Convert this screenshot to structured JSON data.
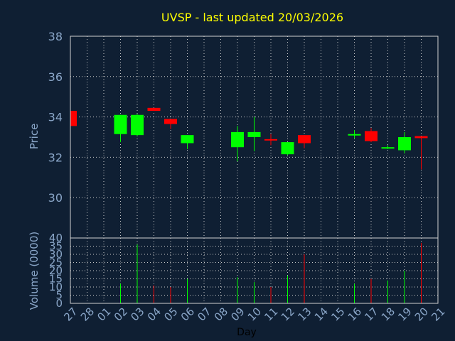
{
  "chart_data": [
    {
      "type": "candlestick",
      "title": "UVSP - last updated 20/03/2026",
      "ylabel": "Price",
      "ylim": [
        28,
        38
      ],
      "yticks": [
        30,
        32,
        34,
        36,
        38
      ],
      "x_tick_labels": [
        "27",
        "28",
        "01",
        "02",
        "03",
        "04",
        "05",
        "06",
        "07",
        "08",
        "09",
        "10",
        "11",
        "12",
        "13",
        "14",
        "15",
        "16",
        "17",
        "18",
        "19",
        "20",
        "21"
      ],
      "grid": true,
      "up_color": "#00ff00",
      "down_color": "#ff0000",
      "candles": [
        {
          "day": "27",
          "index": 0,
          "open": 34.3,
          "close": 33.55,
          "high": 34.3,
          "low": 33.55
        },
        {
          "day": "02",
          "index": 3,
          "open": 33.15,
          "close": 34.1,
          "high": 34.1,
          "low": 32.75
        },
        {
          "day": "03",
          "index": 4,
          "open": 33.1,
          "close": 34.1,
          "high": 34.15,
          "low": 33.05
        },
        {
          "day": "04",
          "index": 5,
          "open": 34.45,
          "close": 34.3,
          "high": 34.45,
          "low": 34.3
        },
        {
          "day": "05",
          "index": 6,
          "open": 33.9,
          "close": 33.65,
          "high": 33.9,
          "low": 33.4
        },
        {
          "day": "06",
          "index": 7,
          "open": 32.7,
          "close": 33.1,
          "high": 33.1,
          "low": 32.4
        },
        {
          "day": "09",
          "index": 10,
          "open": 32.5,
          "close": 33.25,
          "high": 33.55,
          "low": 31.8
        },
        {
          "day": "10",
          "index": 11,
          "open": 33.0,
          "close": 33.25,
          "high": 34.0,
          "low": 32.3
        },
        {
          "day": "11",
          "index": 12,
          "open": 32.9,
          "close": 32.85,
          "high": 33.15,
          "low": 32.6
        },
        {
          "day": "12",
          "index": 13,
          "open": 32.15,
          "close": 32.75,
          "high": 32.75,
          "low": 32.1
        },
        {
          "day": "13",
          "index": 14,
          "open": 33.1,
          "close": 32.7,
          "high": 33.1,
          "low": 32.45
        },
        {
          "day": "16",
          "index": 17,
          "open": 33.1,
          "close": 33.15,
          "high": 33.35,
          "low": 32.95
        },
        {
          "day": "17",
          "index": 18,
          "open": 33.3,
          "close": 32.8,
          "high": 33.45,
          "low": 32.75
        },
        {
          "day": "18",
          "index": 19,
          "open": 32.45,
          "close": 32.5,
          "high": 32.6,
          "low": 32.4
        },
        {
          "day": "19",
          "index": 20,
          "open": 32.35,
          "close": 33.0,
          "high": 33.25,
          "low": 32.2
        },
        {
          "day": "20",
          "index": 21,
          "open": 33.05,
          "close": 32.95,
          "high": 33.05,
          "low": 31.4
        }
      ]
    },
    {
      "type": "bar",
      "ylabel": "Volume (0000)",
      "ylim": [
        0,
        40
      ],
      "yticks": [
        0,
        5,
        10,
        15,
        20,
        25,
        30,
        35,
        40
      ],
      "x_tick_labels": [
        "27",
        "28",
        "01",
        "02",
        "03",
        "04",
        "05",
        "06",
        "07",
        "08",
        "09",
        "10",
        "11",
        "12",
        "13",
        "14",
        "15",
        "16",
        "17",
        "18",
        "19",
        "20",
        "21"
      ],
      "xlabel": "Day",
      "grid": true,
      "bars": [
        {
          "index": 3,
          "value": 12,
          "color": "#00ff00"
        },
        {
          "index": 4,
          "value": 36,
          "color": "#00ff00"
        },
        {
          "index": 5,
          "value": 11,
          "color": "#ff0000"
        },
        {
          "index": 6,
          "value": 10,
          "color": "#ff0000"
        },
        {
          "index": 7,
          "value": 15,
          "color": "#00ff00"
        },
        {
          "index": 10,
          "value": 16,
          "color": "#00ff00"
        },
        {
          "index": 11,
          "value": 13,
          "color": "#00ff00"
        },
        {
          "index": 12,
          "value": 10,
          "color": "#ff0000"
        },
        {
          "index": 13,
          "value": 17,
          "color": "#00ff00"
        },
        {
          "index": 14,
          "value": 30,
          "color": "#ff0000"
        },
        {
          "index": 17,
          "value": 12,
          "color": "#00ff00"
        },
        {
          "index": 18,
          "value": 15,
          "color": "#ff0000"
        },
        {
          "index": 19,
          "value": 14,
          "color": "#00ff00"
        },
        {
          "index": 20,
          "value": 20,
          "color": "#00ff00"
        },
        {
          "index": 21,
          "value": 37,
          "color": "#ff0000"
        }
      ]
    }
  ]
}
